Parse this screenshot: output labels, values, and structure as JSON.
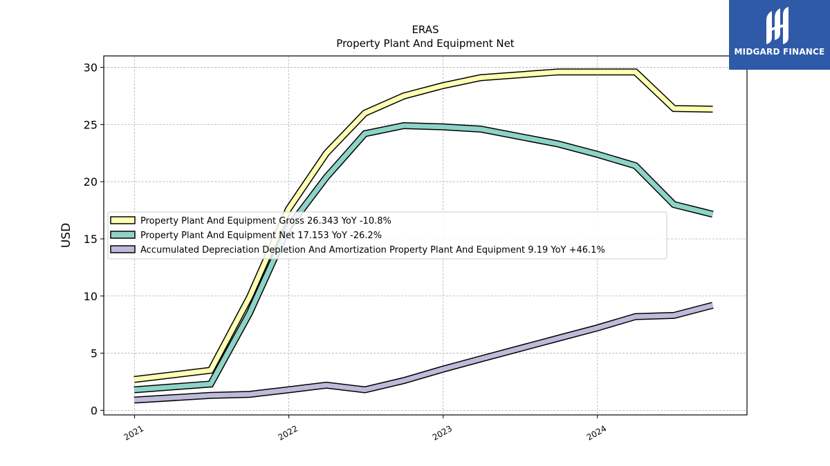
{
  "chart_data": {
    "type": "line",
    "title": "ERAS",
    "subtitle": "Property Plant And Equipment Net",
    "xlabel": "",
    "ylabel": "USD",
    "x_ticks": [
      "2021",
      "2022",
      "2023",
      "2024"
    ],
    "y_ticks": [
      0,
      5,
      10,
      15,
      20,
      25,
      30
    ],
    "ylim": [
      -0.4,
      31
    ],
    "xlim": [
      "2020-10-20",
      "2024-12-20"
    ],
    "grid": true,
    "legend_position": "center-left",
    "x": [
      "2020-12-31",
      "2021-06-30",
      "2021-09-30",
      "2021-12-31",
      "2022-03-31",
      "2022-06-30",
      "2022-09-30",
      "2022-12-31",
      "2023-03-31",
      "2023-09-30",
      "2023-12-31",
      "2024-03-31",
      "2024-06-30",
      "2024-09-30"
    ],
    "series": [
      {
        "name": "Property Plant And Equipment Gross",
        "legend_label": "Property Plant And Equipment Gross  26.343 YoY -10.8%",
        "color": "#ffffb3",
        "values": [
          2.7,
          3.5,
          9.9,
          17.6,
          22.5,
          26.0,
          27.5,
          28.4,
          29.1,
          29.6,
          29.6,
          29.6,
          26.4,
          26.343
        ]
      },
      {
        "name": "Property Plant And Equipment Net",
        "legend_label": "Property Plant And Equipment Net  17.153 YoY -26.2%",
        "color": "#8dd3c7",
        "values": [
          1.8,
          2.3,
          8.5,
          16.0,
          20.4,
          24.2,
          24.9,
          24.8,
          24.6,
          23.3,
          22.4,
          21.4,
          18.0,
          17.153
        ]
      },
      {
        "name": "Accumulated Depreciation Depletion And Amortization Property Plant And Equipment",
        "legend_label": "Accumulated Depreciation Depletion And Amortization Property Plant And Equipment  9.19 YoY +46.1%",
        "color": "#bebada",
        "values": [
          0.9,
          1.3,
          1.4,
          1.8,
          2.2,
          1.8,
          2.6,
          3.6,
          4.5,
          6.3,
          7.2,
          8.2,
          8.3,
          9.19
        ]
      }
    ]
  },
  "logo": {
    "text": "MIDGARD FINANCE",
    "color": "#2f5aa8"
  }
}
